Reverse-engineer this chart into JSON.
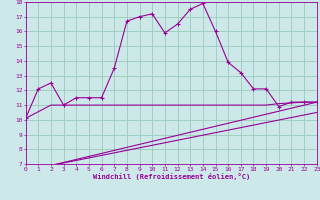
{
  "xlabel": "Windchill (Refroidissement éolien,°C)",
  "xlim": [
    0,
    23
  ],
  "ylim": [
    7,
    18
  ],
  "yticks": [
    7,
    8,
    9,
    10,
    11,
    12,
    13,
    14,
    15,
    16,
    17,
    18
  ],
  "xticks": [
    0,
    1,
    2,
    3,
    4,
    5,
    6,
    7,
    8,
    9,
    10,
    11,
    12,
    13,
    14,
    15,
    16,
    17,
    18,
    19,
    20,
    21,
    22,
    23
  ],
  "bg_color": "#cce8e8",
  "line_color": "#990099",
  "grid_color": "#99ccbb",
  "curve1_x": [
    0,
    1,
    2,
    3,
    4,
    5,
    6,
    7,
    8,
    9,
    10,
    11,
    12,
    13,
    14,
    15,
    16,
    17,
    18,
    19,
    20,
    21,
    22,
    23
  ],
  "curve1_y": [
    10.1,
    12.1,
    12.5,
    11.0,
    11.5,
    11.5,
    11.5,
    13.5,
    16.7,
    17.0,
    17.2,
    15.9,
    16.5,
    17.5,
    17.9,
    16.0,
    13.9,
    13.2,
    12.1,
    12.1,
    10.9,
    11.2,
    11.2,
    11.2
  ],
  "curve2_x": [
    0,
    2,
    3,
    4,
    5,
    6,
    7,
    8,
    9,
    10,
    11,
    12,
    13,
    14,
    15,
    16,
    17,
    18,
    19,
    20,
    21,
    22,
    23
  ],
  "curve2_y": [
    10.1,
    11.0,
    11.0,
    11.0,
    11.0,
    11.0,
    11.0,
    11.0,
    11.0,
    11.0,
    11.0,
    11.0,
    11.0,
    11.0,
    11.0,
    11.0,
    11.0,
    11.0,
    11.0,
    11.1,
    11.15,
    11.2,
    11.2
  ],
  "curve3_x": [
    2,
    23
  ],
  "curve3_y": [
    6.9,
    11.2
  ],
  "curve4_x": [
    2,
    23
  ],
  "curve4_y": [
    6.9,
    10.5
  ]
}
